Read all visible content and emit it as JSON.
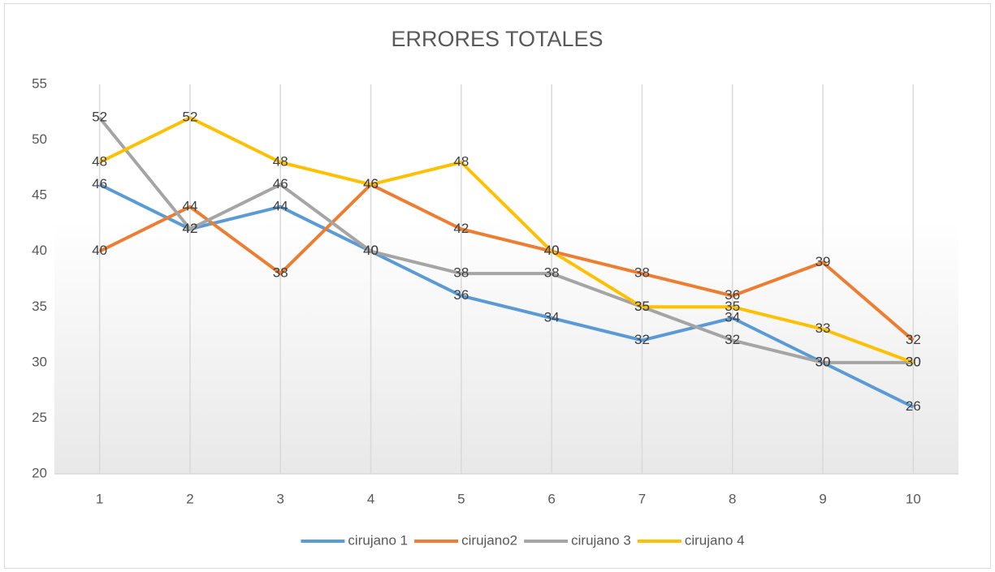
{
  "chart_data": {
    "type": "line",
    "title": "ERRORES TOTALES",
    "categories": [
      "1",
      "2",
      "3",
      "4",
      "5",
      "6",
      "7",
      "8",
      "9",
      "10"
    ],
    "series": [
      {
        "name": "cirujano 1",
        "color": "#5b9bd5",
        "values": [
          46,
          42,
          44,
          40,
          36,
          34,
          32,
          34,
          30,
          26
        ]
      },
      {
        "name": "cirujano2",
        "color": "#ed7d31",
        "values": [
          40,
          44,
          38,
          46,
          42,
          40,
          38,
          36,
          39,
          32
        ]
      },
      {
        "name": "cirujano 3",
        "color": "#a5a5a5",
        "values": [
          52,
          42,
          46,
          40,
          38,
          38,
          35,
          32,
          30,
          30
        ]
      },
      {
        "name": "cirujano 4",
        "color": "#ffc000",
        "values": [
          48,
          52,
          48,
          46,
          48,
          40,
          35,
          35,
          33,
          30
        ]
      }
    ],
    "ylim": [
      20,
      55
    ],
    "yticks": [
      20,
      25,
      30,
      35,
      40,
      45,
      50,
      55
    ],
    "grid": "x",
    "legend": "bottom",
    "data_labels": true
  }
}
